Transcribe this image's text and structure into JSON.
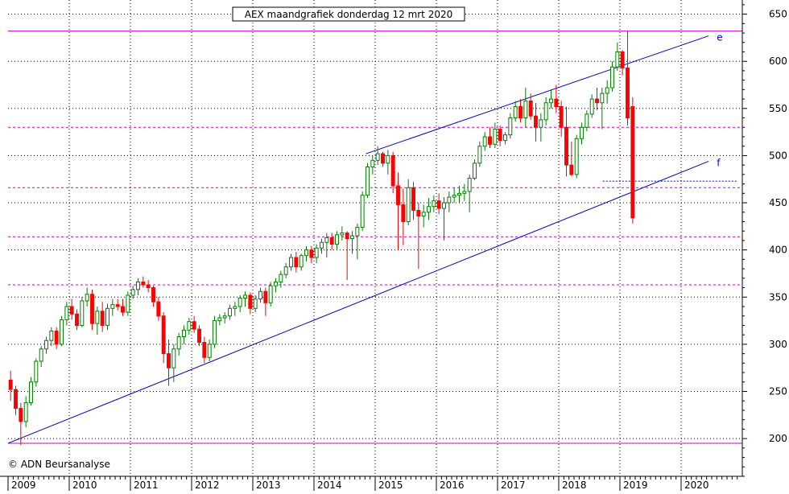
{
  "chart_data": {
    "type": "candlestick",
    "title": "AEX maandgrafiek donderdag 12 mrt 2020",
    "copyright": "© ADN Beursanalyse",
    "ylim": [
      160,
      665
    ],
    "xlim": [
      2009.0,
      2021.0
    ],
    "yticks": [
      200,
      250,
      300,
      350,
      400,
      450,
      500,
      550,
      600,
      650
    ],
    "year_labels": [
      "2009",
      "2010",
      "2011",
      "2012",
      "2013",
      "2014",
      "2015",
      "2016",
      "2017",
      "2018",
      "2019",
      "2020"
    ],
    "colors": {
      "up": "#008000",
      "down": "#ff0000",
      "horizontal": "#cc00cc",
      "trend": "#0000cc"
    },
    "grid": true,
    "horizontal_levels": [
      {
        "y": 632,
        "style": "solid"
      },
      {
        "y": 530,
        "style": "dashed"
      },
      {
        "y": 466,
        "style": "dashed"
      },
      {
        "y": 414,
        "style": "dashed"
      },
      {
        "y": 363,
        "style": "dashed"
      },
      {
        "y": 195,
        "style": "solid"
      }
    ],
    "support_dotted": {
      "y": 473,
      "x_start": 2018.72,
      "x_end": 2020.92
    },
    "trendlines": [
      {
        "label": "e",
        "x1": 2014.85,
        "y1": 502,
        "x2": 2020.45,
        "y2": 627
      },
      {
        "label": "f",
        "x1": 2009.0,
        "y1": 195,
        "x2": 2020.45,
        "y2": 494
      }
    ],
    "candles": [
      {
        "o": 262,
        "h": 272,
        "l": 240,
        "c": 252
      },
      {
        "o": 252,
        "h": 256,
        "l": 225,
        "c": 232
      },
      {
        "o": 232,
        "h": 238,
        "l": 193,
        "c": 218
      },
      {
        "o": 218,
        "h": 245,
        "l": 212,
        "c": 238
      },
      {
        "o": 238,
        "h": 265,
        "l": 235,
        "c": 260
      },
      {
        "o": 260,
        "h": 285,
        "l": 255,
        "c": 282
      },
      {
        "o": 282,
        "h": 298,
        "l": 276,
        "c": 295
      },
      {
        "o": 295,
        "h": 308,
        "l": 290,
        "c": 304
      },
      {
        "o": 304,
        "h": 318,
        "l": 298,
        "c": 314
      },
      {
        "o": 314,
        "h": 318,
        "l": 295,
        "c": 300
      },
      {
        "o": 300,
        "h": 330,
        "l": 298,
        "c": 326
      },
      {
        "o": 326,
        "h": 345,
        "l": 320,
        "c": 340
      },
      {
        "o": 340,
        "h": 348,
        "l": 326,
        "c": 332
      },
      {
        "o": 332,
        "h": 337,
        "l": 315,
        "c": 320
      },
      {
        "o": 320,
        "h": 350,
        "l": 318,
        "c": 346
      },
      {
        "o": 346,
        "h": 360,
        "l": 340,
        "c": 353
      },
      {
        "o": 353,
        "h": 358,
        "l": 315,
        "c": 322
      },
      {
        "o": 322,
        "h": 340,
        "l": 310,
        "c": 335
      },
      {
        "o": 335,
        "h": 345,
        "l": 313,
        "c": 320
      },
      {
        "o": 320,
        "h": 343,
        "l": 315,
        "c": 338
      },
      {
        "o": 338,
        "h": 348,
        "l": 330,
        "c": 342
      },
      {
        "o": 342,
        "h": 348,
        "l": 336,
        "c": 340
      },
      {
        "o": 340,
        "h": 348,
        "l": 330,
        "c": 334
      },
      {
        "o": 334,
        "h": 356,
        "l": 330,
        "c": 352
      },
      {
        "o": 352,
        "h": 362,
        "l": 348,
        "c": 358
      },
      {
        "o": 358,
        "h": 370,
        "l": 352,
        "c": 366
      },
      {
        "o": 366,
        "h": 372,
        "l": 360,
        "c": 363
      },
      {
        "o": 363,
        "h": 368,
        "l": 355,
        "c": 360
      },
      {
        "o": 360,
        "h": 362,
        "l": 340,
        "c": 345
      },
      {
        "o": 345,
        "h": 350,
        "l": 325,
        "c": 330
      },
      {
        "o": 330,
        "h": 334,
        "l": 280,
        "c": 290
      },
      {
        "o": 290,
        "h": 305,
        "l": 256,
        "c": 275
      },
      {
        "o": 275,
        "h": 300,
        "l": 260,
        "c": 295
      },
      {
        "o": 295,
        "h": 312,
        "l": 288,
        "c": 308
      },
      {
        "o": 308,
        "h": 320,
        "l": 300,
        "c": 315
      },
      {
        "o": 315,
        "h": 328,
        "l": 310,
        "c": 324
      },
      {
        "o": 324,
        "h": 330,
        "l": 312,
        "c": 316
      },
      {
        "o": 316,
        "h": 320,
        "l": 298,
        "c": 302
      },
      {
        "o": 302,
        "h": 308,
        "l": 280,
        "c": 286
      },
      {
        "o": 286,
        "h": 305,
        "l": 282,
        "c": 300
      },
      {
        "o": 300,
        "h": 330,
        "l": 296,
        "c": 325
      },
      {
        "o": 325,
        "h": 332,
        "l": 320,
        "c": 328
      },
      {
        "o": 328,
        "h": 334,
        "l": 322,
        "c": 330
      },
      {
        "o": 330,
        "h": 342,
        "l": 326,
        "c": 338
      },
      {
        "o": 338,
        "h": 345,
        "l": 330,
        "c": 340
      },
      {
        "o": 340,
        "h": 352,
        "l": 334,
        "c": 349
      },
      {
        "o": 349,
        "h": 356,
        "l": 340,
        "c": 352
      },
      {
        "o": 352,
        "h": 355,
        "l": 332,
        "c": 338
      },
      {
        "o": 338,
        "h": 352,
        "l": 334,
        "c": 348
      },
      {
        "o": 348,
        "h": 360,
        "l": 344,
        "c": 356
      },
      {
        "o": 356,
        "h": 360,
        "l": 330,
        "c": 344
      },
      {
        "o": 344,
        "h": 366,
        "l": 340,
        "c": 362
      },
      {
        "o": 362,
        "h": 370,
        "l": 355,
        "c": 366
      },
      {
        "o": 366,
        "h": 378,
        "l": 360,
        "c": 374
      },
      {
        "o": 374,
        "h": 386,
        "l": 370,
        "c": 382
      },
      {
        "o": 382,
        "h": 396,
        "l": 378,
        "c": 392
      },
      {
        "o": 392,
        "h": 398,
        "l": 376,
        "c": 382
      },
      {
        "o": 382,
        "h": 396,
        "l": 378,
        "c": 394
      },
      {
        "o": 394,
        "h": 404,
        "l": 388,
        "c": 400
      },
      {
        "o": 400,
        "h": 404,
        "l": 386,
        "c": 392
      },
      {
        "o": 392,
        "h": 406,
        "l": 386,
        "c": 402
      },
      {
        "o": 402,
        "h": 412,
        "l": 396,
        "c": 408
      },
      {
        "o": 408,
        "h": 418,
        "l": 392,
        "c": 413
      },
      {
        "o": 413,
        "h": 418,
        "l": 400,
        "c": 406
      },
      {
        "o": 406,
        "h": 420,
        "l": 400,
        "c": 416
      },
      {
        "o": 416,
        "h": 425,
        "l": 410,
        "c": 418
      },
      {
        "o": 418,
        "h": 420,
        "l": 368,
        "c": 412
      },
      {
        "o": 412,
        "h": 420,
        "l": 396,
        "c": 415
      },
      {
        "o": 415,
        "h": 428,
        "l": 390,
        "c": 424
      },
      {
        "o": 424,
        "h": 462,
        "l": 420,
        "c": 458
      },
      {
        "o": 458,
        "h": 492,
        "l": 455,
        "c": 488
      },
      {
        "o": 488,
        "h": 500,
        "l": 480,
        "c": 495
      },
      {
        "o": 495,
        "h": 510,
        "l": 490,
        "c": 502
      },
      {
        "o": 502,
        "h": 504,
        "l": 488,
        "c": 492
      },
      {
        "o": 492,
        "h": 506,
        "l": 480,
        "c": 500
      },
      {
        "o": 500,
        "h": 504,
        "l": 460,
        "c": 468
      },
      {
        "o": 468,
        "h": 482,
        "l": 400,
        "c": 448
      },
      {
        "o": 448,
        "h": 465,
        "l": 405,
        "c": 430
      },
      {
        "o": 430,
        "h": 475,
        "l": 426,
        "c": 466
      },
      {
        "o": 466,
        "h": 472,
        "l": 432,
        "c": 442
      },
      {
        "o": 442,
        "h": 450,
        "l": 380,
        "c": 436
      },
      {
        "o": 436,
        "h": 448,
        "l": 424,
        "c": 440
      },
      {
        "o": 440,
        "h": 455,
        "l": 432,
        "c": 446
      },
      {
        "o": 446,
        "h": 458,
        "l": 440,
        "c": 452
      },
      {
        "o": 452,
        "h": 460,
        "l": 438,
        "c": 444
      },
      {
        "o": 444,
        "h": 456,
        "l": 410,
        "c": 450
      },
      {
        "o": 450,
        "h": 462,
        "l": 440,
        "c": 456
      },
      {
        "o": 456,
        "h": 466,
        "l": 450,
        "c": 458
      },
      {
        "o": 458,
        "h": 468,
        "l": 450,
        "c": 460
      },
      {
        "o": 460,
        "h": 470,
        "l": 452,
        "c": 462
      },
      {
        "o": 462,
        "h": 480,
        "l": 440,
        "c": 476
      },
      {
        "o": 476,
        "h": 496,
        "l": 474,
        "c": 492
      },
      {
        "o": 492,
        "h": 515,
        "l": 488,
        "c": 510
      },
      {
        "o": 510,
        "h": 525,
        "l": 505,
        "c": 520
      },
      {
        "o": 520,
        "h": 530,
        "l": 508,
        "c": 512
      },
      {
        "o": 512,
        "h": 535,
        "l": 508,
        "c": 528
      },
      {
        "o": 528,
        "h": 532,
        "l": 510,
        "c": 516
      },
      {
        "o": 516,
        "h": 525,
        "l": 512,
        "c": 522
      },
      {
        "o": 522,
        "h": 545,
        "l": 518,
        "c": 540
      },
      {
        "o": 540,
        "h": 558,
        "l": 536,
        "c": 552
      },
      {
        "o": 552,
        "h": 560,
        "l": 535,
        "c": 540
      },
      {
        "o": 540,
        "h": 572,
        "l": 530,
        "c": 558
      },
      {
        "o": 558,
        "h": 566,
        "l": 538,
        "c": 542
      },
      {
        "o": 542,
        "h": 556,
        "l": 515,
        "c": 530
      },
      {
        "o": 530,
        "h": 545,
        "l": 515,
        "c": 538
      },
      {
        "o": 538,
        "h": 562,
        "l": 532,
        "c": 556
      },
      {
        "o": 556,
        "h": 570,
        "l": 550,
        "c": 560
      },
      {
        "o": 560,
        "h": 575,
        "l": 545,
        "c": 552
      },
      {
        "o": 552,
        "h": 558,
        "l": 520,
        "c": 530
      },
      {
        "o": 530,
        "h": 552,
        "l": 478,
        "c": 490
      },
      {
        "o": 490,
        "h": 515,
        "l": 478,
        "c": 480
      },
      {
        "o": 480,
        "h": 522,
        "l": 476,
        "c": 518
      },
      {
        "o": 518,
        "h": 535,
        "l": 512,
        "c": 530
      },
      {
        "o": 530,
        "h": 548,
        "l": 526,
        "c": 544
      },
      {
        "o": 544,
        "h": 565,
        "l": 540,
        "c": 560
      },
      {
        "o": 560,
        "h": 572,
        "l": 548,
        "c": 556
      },
      {
        "o": 556,
        "h": 572,
        "l": 528,
        "c": 566
      },
      {
        "o": 566,
        "h": 580,
        "l": 555,
        "c": 572
      },
      {
        "o": 572,
        "h": 600,
        "l": 568,
        "c": 594
      },
      {
        "o": 594,
        "h": 620,
        "l": 590,
        "c": 610
      },
      {
        "o": 610,
        "h": 612,
        "l": 585,
        "c": 593
      },
      {
        "o": 593,
        "h": 632,
        "l": 532,
        "c": 540
      },
      {
        "o": 552,
        "h": 562,
        "l": 428,
        "c": 434
      }
    ]
  }
}
